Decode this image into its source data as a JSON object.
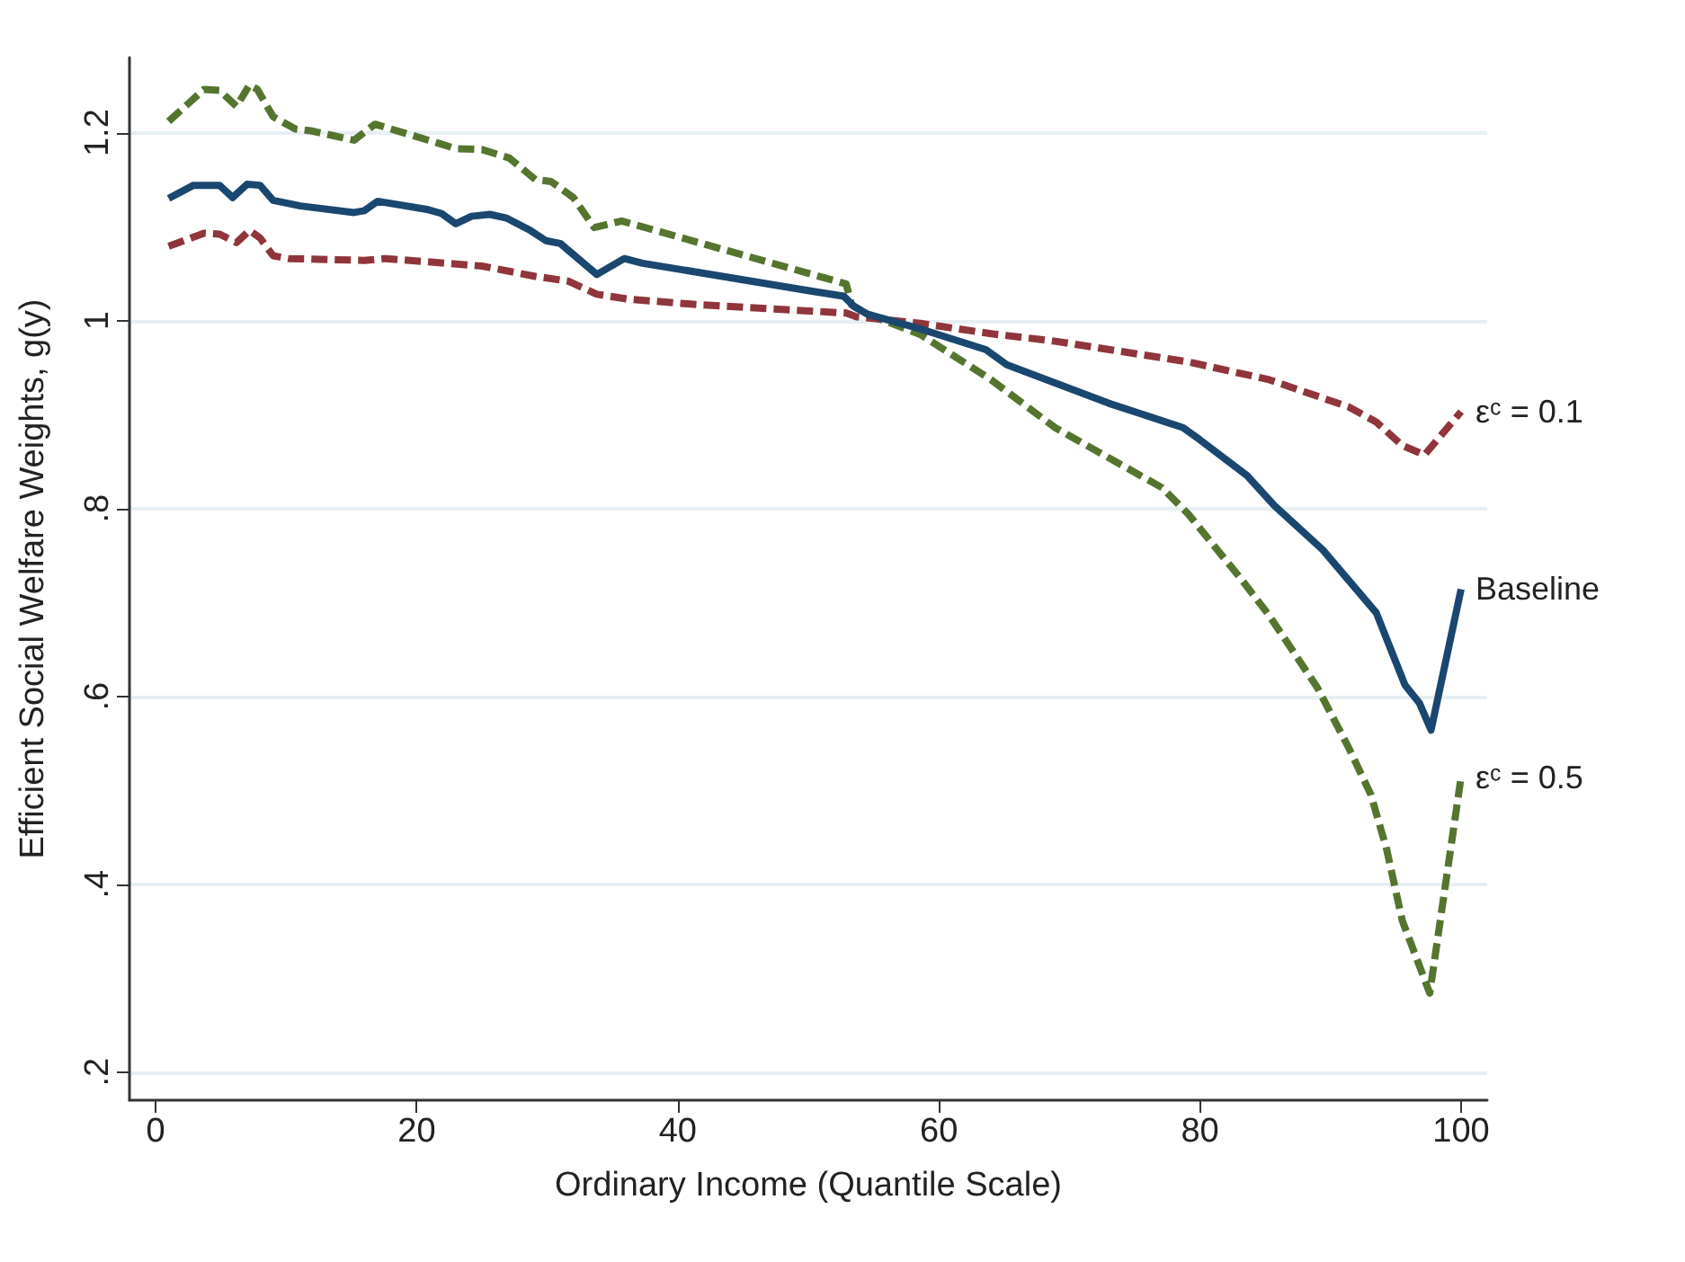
{
  "chart_data": {
    "type": "line",
    "xlabel": "Ordinary Income (Quantile Scale)",
    "ylabel": "Efficient Social Welfare Weights, g(y)",
    "xlim": [
      -2,
      102
    ],
    "xticks": [
      0,
      20,
      40,
      60,
      80,
      100
    ],
    "ylim": [
      0.17,
      1.28
    ],
    "yticks": [
      {
        "value": 0.2,
        "label": ".2"
      },
      {
        "value": 0.4,
        "label": ".4"
      },
      {
        "value": 0.6,
        "label": ".6"
      },
      {
        "value": 0.8,
        "label": ".8"
      },
      {
        "value": 1,
        "label": "1"
      },
      {
        "value": 1.2,
        "label": "1.2"
      }
    ],
    "grid": "y",
    "legend": false,
    "marker": "none",
    "series": [
      {
        "name": "εᶜ = 0.5",
        "color": "#55752f",
        "line_style": "dashed",
        "x": [
          1,
          3.7,
          4.9,
          6.2,
          7.2,
          7.8,
          9,
          10.7,
          11.9,
          15.2,
          16.8,
          20.9,
          23,
          25,
          27.1,
          29.1,
          30.3,
          32,
          33.6,
          35.7,
          52.9,
          53.3,
          54.5,
          58.6,
          64,
          68.9,
          77.1,
          79.1,
          83.2,
          85.3,
          89,
          91.4,
          93.1,
          94.3,
          95.5,
          97.6,
          100
        ],
        "values": [
          1.212,
          1.246,
          1.245,
          1.228,
          1.251,
          1.246,
          1.217,
          1.204,
          1.202,
          1.192,
          1.209,
          1.192,
          1.183,
          1.182,
          1.173,
          1.15,
          1.148,
          1.131,
          1.099,
          1.106,
          1.039,
          1.017,
          1.007,
          0.985,
          0.937,
          0.886,
          0.822,
          0.794,
          0.724,
          0.686,
          0.609,
          0.545,
          0.495,
          0.437,
          0.361,
          0.284,
          0.514
        ]
      },
      {
        "name": "εᶜ = 0.1",
        "color": "#90353b",
        "line_style": "dashed",
        "x": [
          1,
          3.7,
          4.9,
          6.2,
          7.2,
          8,
          9,
          10.2,
          16,
          17.6,
          25,
          29.1,
          31.6,
          33.8,
          36.1,
          41.4,
          52.9,
          53.7,
          58.6,
          64,
          68.9,
          79.1,
          85.3,
          91.4,
          93.5,
          95.5,
          97.2,
          100
        ],
        "values": [
          1.079,
          1.093,
          1.092,
          1.083,
          1.096,
          1.088,
          1.069,
          1.066,
          1.064,
          1.066,
          1.058,
          1.047,
          1.042,
          1.028,
          1.023,
          1.017,
          1.008,
          1.004,
          0.997,
          0.986,
          0.978,
          0.956,
          0.937,
          0.908,
          0.892,
          0.867,
          0.857,
          0.903
        ]
      },
      {
        "name": "Baseline",
        "color": "#1a476f",
        "line_style": "solid",
        "x": [
          1,
          2.9,
          4.9,
          5.9,
          7,
          8,
          9,
          11.1,
          15.2,
          16,
          17,
          20.9,
          21.9,
          23,
          24.2,
          25.6,
          26.9,
          28.7,
          29.9,
          31,
          33.8,
          35.9,
          37.3,
          50.4,
          52.7,
          53.5,
          54.5,
          58.6,
          63.6,
          65.2,
          73,
          78.7,
          80,
          83.6,
          85.7,
          89.4,
          93.5,
          94.7,
          95.7,
          96.8,
          97.7,
          100
        ],
        "values": [
          1.13,
          1.144,
          1.144,
          1.131,
          1.145,
          1.144,
          1.128,
          1.122,
          1.115,
          1.117,
          1.127,
          1.118,
          1.114,
          1.103,
          1.111,
          1.113,
          1.109,
          1.096,
          1.085,
          1.082,
          1.049,
          1.066,
          1.061,
          1.031,
          1.026,
          1.015,
          1.007,
          0.991,
          0.969,
          0.953,
          0.912,
          0.886,
          0.873,
          0.835,
          0.803,
          0.756,
          0.689,
          0.647,
          0.612,
          0.593,
          0.564,
          0.714
        ]
      }
    ]
  }
}
